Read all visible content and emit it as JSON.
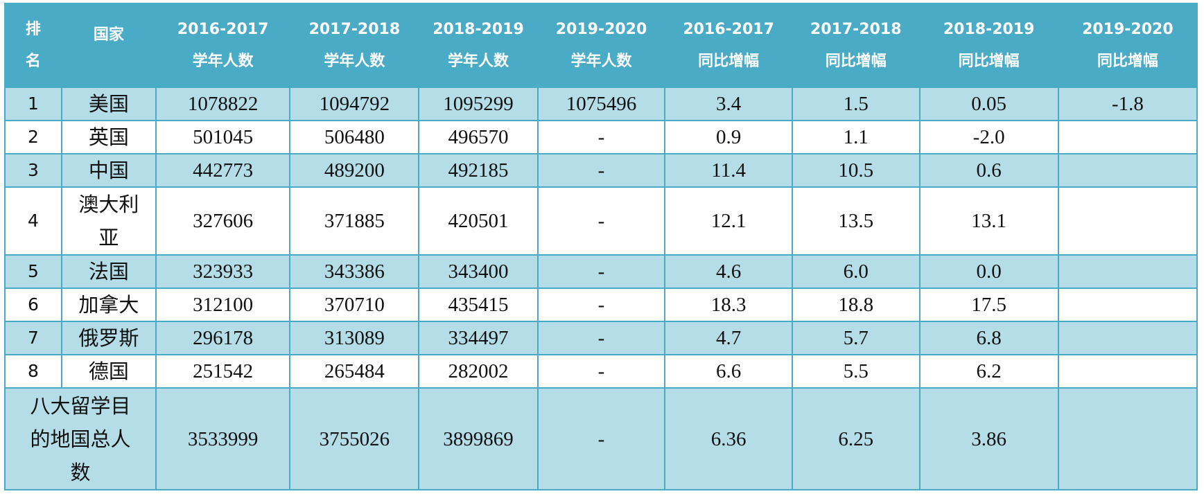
{
  "table": {
    "headers": [
      {
        "lines": [
          "排",
          "名"
        ]
      },
      {
        "lines": [
          "国家"
        ]
      },
      {
        "lines": [
          "2016-2017",
          "学年人数"
        ]
      },
      {
        "lines": [
          "2017-2018",
          "学年人数"
        ]
      },
      {
        "lines": [
          "2018-2019",
          "学年人数"
        ]
      },
      {
        "lines": [
          "2019-2020",
          "学年人数"
        ]
      },
      {
        "lines": [
          "2016-2017",
          "同比增幅"
        ]
      },
      {
        "lines": [
          "2017-2018",
          "同比增幅"
        ]
      },
      {
        "lines": [
          "2018-2019",
          "同比增幅"
        ]
      },
      {
        "lines": [
          "2019-2020",
          "同比增幅"
        ]
      }
    ],
    "rows": [
      {
        "rank": "1",
        "country": [
          "美国"
        ],
        "cells": [
          "1078822",
          "1094792",
          "1095299",
          "1075496",
          "3.4",
          "1.5",
          "0.05",
          "-1.8"
        ]
      },
      {
        "rank": "2",
        "country": [
          "英国"
        ],
        "cells": [
          "501045",
          "506480",
          "496570",
          "-",
          "0.9",
          "1.1",
          "-2.0",
          ""
        ]
      },
      {
        "rank": "3",
        "country": [
          "中国"
        ],
        "cells": [
          "442773",
          "489200",
          "492185",
          "-",
          "11.4",
          "10.5",
          "0.6",
          ""
        ]
      },
      {
        "rank": "4",
        "country": [
          "澳大利",
          "亚"
        ],
        "cells": [
          "327606",
          "371885",
          "420501",
          "-",
          "12.1",
          "13.5",
          "13.1",
          ""
        ]
      },
      {
        "rank": "5",
        "country": [
          "法国"
        ],
        "cells": [
          "323933",
          "343386",
          "343400",
          "-",
          "4.6",
          "6.0",
          "0.0",
          ""
        ]
      },
      {
        "rank": "6",
        "country": [
          "加拿大"
        ],
        "cells": [
          "312100",
          "370710",
          "435415",
          "-",
          "18.3",
          "18.8",
          "17.5",
          ""
        ]
      },
      {
        "rank": "7",
        "country": [
          "俄罗斯"
        ],
        "cells": [
          "296178",
          "313089",
          "334497",
          "-",
          "4.7",
          "5.7",
          "6.8",
          ""
        ]
      },
      {
        "rank": "8",
        "country": [
          "德国"
        ],
        "cells": [
          "251542",
          "265484",
          "282002",
          "-",
          "6.6",
          "5.5",
          "6.2",
          ""
        ]
      }
    ],
    "total": {
      "label": [
        "八大留学目",
        "的地国总人",
        "数"
      ],
      "cells": [
        "3533999",
        "3755026",
        "3899869",
        "-",
        "6.36",
        "6.25",
        "3.86",
        ""
      ]
    }
  }
}
